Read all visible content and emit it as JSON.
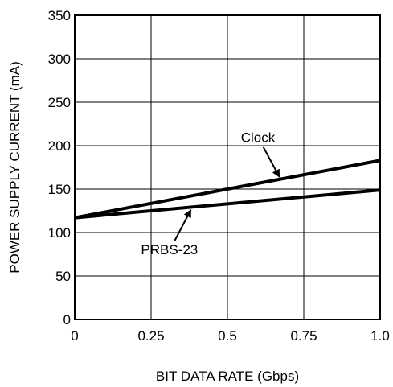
{
  "chart_data": {
    "type": "line",
    "title": "",
    "xlabel": "BIT DATA RATE (Gbps)",
    "ylabel": "POWER SUPPLY CURRENT (mA)",
    "xlim": [
      0,
      1.0
    ],
    "ylim": [
      0,
      350
    ],
    "x_ticks": [
      0,
      0.25,
      0.5,
      0.75,
      1.0
    ],
    "x_tick_labels": [
      "0",
      "0.25",
      "0.5",
      "0.75",
      "1.0"
    ],
    "y_ticks": [
      0,
      50,
      100,
      150,
      200,
      250,
      300,
      350
    ],
    "y_tick_labels": [
      "0",
      "50",
      "100",
      "150",
      "200",
      "250",
      "300",
      "350"
    ],
    "grid": true,
    "legend": "none",
    "series": [
      {
        "name": "Clock",
        "x": [
          0,
          1.0
        ],
        "y": [
          117,
          183
        ]
      },
      {
        "name": "PRBS-23",
        "x": [
          0,
          1.0
        ],
        "y": [
          117,
          149
        ]
      }
    ],
    "annotations": [
      {
        "text": "Clock",
        "series": "Clock",
        "label_at": [
          0.6,
          204
        ],
        "arrow_to": [
          0.67,
          164
        ]
      },
      {
        "text": "PRBS-23",
        "series": "PRBS-23",
        "label_at": [
          0.31,
          75
        ],
        "arrow_to": [
          0.38,
          126
        ]
      }
    ]
  }
}
